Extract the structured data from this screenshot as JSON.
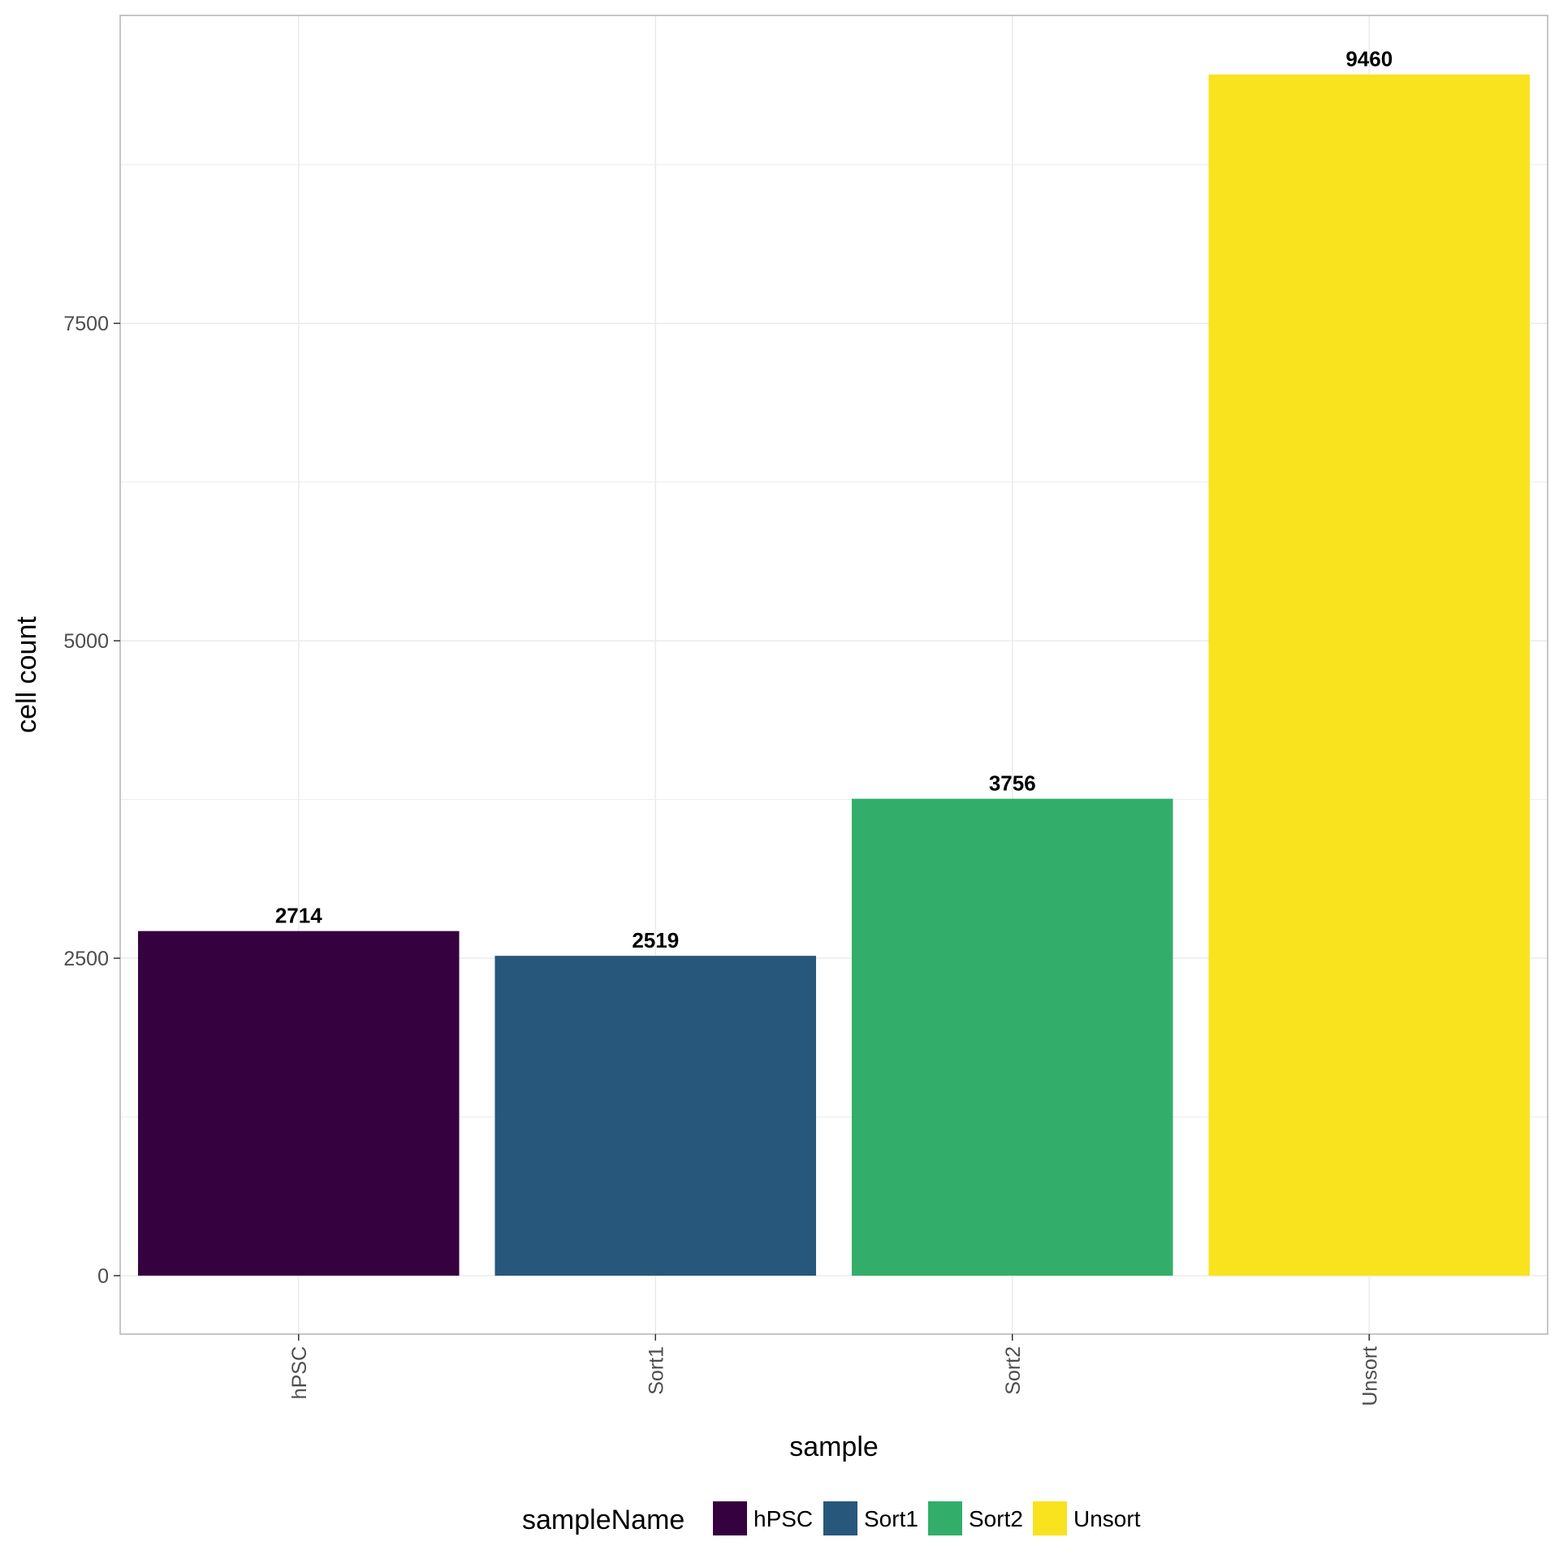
{
  "chart_data": {
    "type": "bar",
    "categories": [
      "hPSC",
      "Sort1",
      "Sort2",
      "Unsort"
    ],
    "values": [
      2714,
      2519,
      3756,
      9460
    ],
    "data_labels": [
      "2714",
      "2519",
      "3756",
      "9460"
    ],
    "colors": [
      "#35013F",
      "#27577B",
      "#32AE6A",
      "#F9E21E"
    ],
    "xlabel": "sample",
    "ylabel": "cell count",
    "ylim": [
      -460,
      9925
    ],
    "yticks": [
      0,
      2500,
      5000,
      7500
    ],
    "ytick_labels": [
      "0",
      "2500",
      "5000",
      "7500"
    ],
    "grid": true,
    "x_tick_rotation": "vertical",
    "legend": {
      "title": "sampleName",
      "placement": "bottom",
      "entries": [
        "hPSC",
        "Sort1",
        "Sort2",
        "Unsort"
      ]
    }
  }
}
